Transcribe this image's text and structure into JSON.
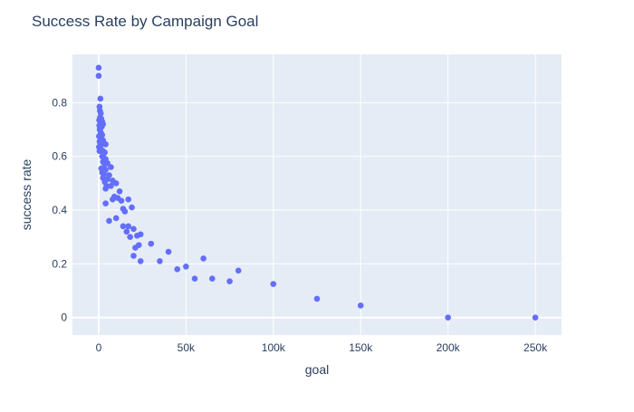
{
  "chart_data": {
    "type": "scatter",
    "title": "Success Rate by Campaign Goal",
    "xlabel": "goal",
    "ylabel": "success rate",
    "xlim": [
      -15000,
      265000
    ],
    "ylim": [
      -0.065,
      0.98
    ],
    "x_ticks": [
      0,
      50000,
      100000,
      150000,
      200000,
      250000
    ],
    "x_tick_labels": [
      "0",
      "50k",
      "100k",
      "150k",
      "200k",
      "250k"
    ],
    "y_ticks": [
      0,
      0.2,
      0.4,
      0.6,
      0.8
    ],
    "y_tick_labels": [
      "0",
      "0.2",
      "0.4",
      "0.6",
      "0.8"
    ],
    "grid": true,
    "colors": {
      "marker": "#636efa",
      "plot_bg": "#e5ecf6",
      "grid": "#ffffff",
      "text": "#2a3f5f"
    },
    "points": [
      [
        0,
        0.93
      ],
      [
        0,
        0.9
      ],
      [
        1000,
        0.815
      ],
      [
        500,
        0.785
      ],
      [
        700,
        0.77
      ],
      [
        1200,
        0.76
      ],
      [
        800,
        0.745
      ],
      [
        1500,
        0.74
      ],
      [
        300,
        0.735
      ],
      [
        2000,
        0.73
      ],
      [
        1000,
        0.72
      ],
      [
        400,
        0.715
      ],
      [
        2500,
        0.72
      ],
      [
        1700,
        0.71
      ],
      [
        600,
        0.7
      ],
      [
        1200,
        0.69
      ],
      [
        2000,
        0.68
      ],
      [
        200,
        0.675
      ],
      [
        1500,
        0.665
      ],
      [
        2500,
        0.66
      ],
      [
        500,
        0.655
      ],
      [
        3000,
        0.65
      ],
      [
        4000,
        0.645
      ],
      [
        1000,
        0.64
      ],
      [
        200,
        0.635
      ],
      [
        1500,
        0.625
      ],
      [
        2500,
        0.62
      ],
      [
        500,
        0.62
      ],
      [
        3500,
        0.615
      ],
      [
        2000,
        0.6
      ],
      [
        3000,
        0.595
      ],
      [
        4000,
        0.59
      ],
      [
        2500,
        0.58
      ],
      [
        5000,
        0.575
      ],
      [
        3500,
        0.57
      ],
      [
        7000,
        0.56
      ],
      [
        1500,
        0.555
      ],
      [
        4000,
        0.55
      ],
      [
        2000,
        0.54
      ],
      [
        3000,
        0.535
      ],
      [
        6000,
        0.53
      ],
      [
        2500,
        0.52
      ],
      [
        5000,
        0.515
      ],
      [
        8000,
        0.51
      ],
      [
        3500,
        0.505
      ],
      [
        10000,
        0.5
      ],
      [
        4500,
        0.49
      ],
      [
        7000,
        0.49
      ],
      [
        4000,
        0.48
      ],
      [
        12000,
        0.47
      ],
      [
        9000,
        0.45
      ],
      [
        11000,
        0.445
      ],
      [
        8000,
        0.44
      ],
      [
        17000,
        0.44
      ],
      [
        13000,
        0.435
      ],
      [
        4000,
        0.425
      ],
      [
        19000,
        0.41
      ],
      [
        14000,
        0.405
      ],
      [
        15000,
        0.395
      ],
      [
        10000,
        0.37
      ],
      [
        6000,
        0.36
      ],
      [
        14000,
        0.34
      ],
      [
        17000,
        0.34
      ],
      [
        20000,
        0.33
      ],
      [
        16000,
        0.32
      ],
      [
        24000,
        0.31
      ],
      [
        22000,
        0.305
      ],
      [
        18000,
        0.3
      ],
      [
        30000,
        0.275
      ],
      [
        23000,
        0.27
      ],
      [
        21000,
        0.26
      ],
      [
        40000,
        0.245
      ],
      [
        20000,
        0.23
      ],
      [
        60000,
        0.22
      ],
      [
        24000,
        0.21
      ],
      [
        35000,
        0.21
      ],
      [
        50000,
        0.19
      ],
      [
        45000,
        0.18
      ],
      [
        80000,
        0.175
      ],
      [
        55000,
        0.145
      ],
      [
        65000,
        0.145
      ],
      [
        75000,
        0.135
      ],
      [
        100000,
        0.125
      ],
      [
        125000,
        0.07
      ],
      [
        150000,
        0.045
      ],
      [
        200000,
        0.0
      ],
      [
        250000,
        0.0
      ]
    ]
  }
}
